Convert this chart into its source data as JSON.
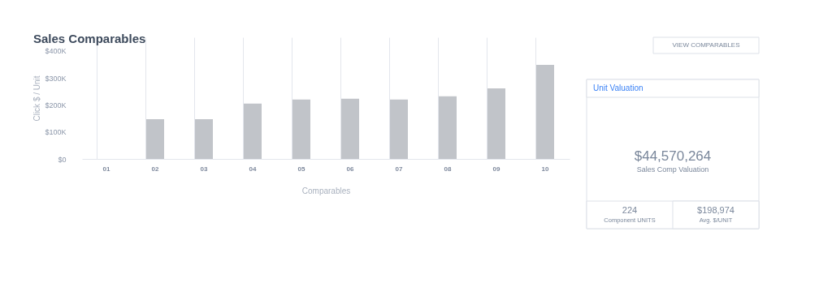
{
  "chart_data": [
    {
      "type": "bar",
      "title": "Sales Comparables",
      "xlabel": "Comparables",
      "ylabel": "Click $ / Unit",
      "categories": [
        "01",
        "02",
        "03",
        "04",
        "05",
        "06",
        "07",
        "08",
        "09",
        "10"
      ],
      "values": [
        0,
        147000,
        147000,
        205000,
        220000,
        223000,
        220000,
        232000,
        261000,
        348000
      ],
      "color": "#c1c4c9",
      "ylim": [
        0,
        450000
      ],
      "yticks": [
        {
          "value": 0,
          "label": "$0"
        },
        {
          "value": 100000,
          "label": "$100K"
        },
        {
          "value": 200000,
          "label": "$200K"
        },
        {
          "value": 300000,
          "label": "$300K"
        },
        {
          "value": 400000,
          "label": "$400K"
        }
      ],
      "grid": "x",
      "annotations": [
        "VIEW COMPARABLES"
      ]
    },
    {
      "type": "other",
      "title": "Unit Valuation",
      "annotations": [
        "$44,570,264",
        "Sales Comp Valuation",
        "224",
        "Component UNITS",
        "$198,974",
        "Avg. $/UNIT"
      ]
    }
  ]
}
